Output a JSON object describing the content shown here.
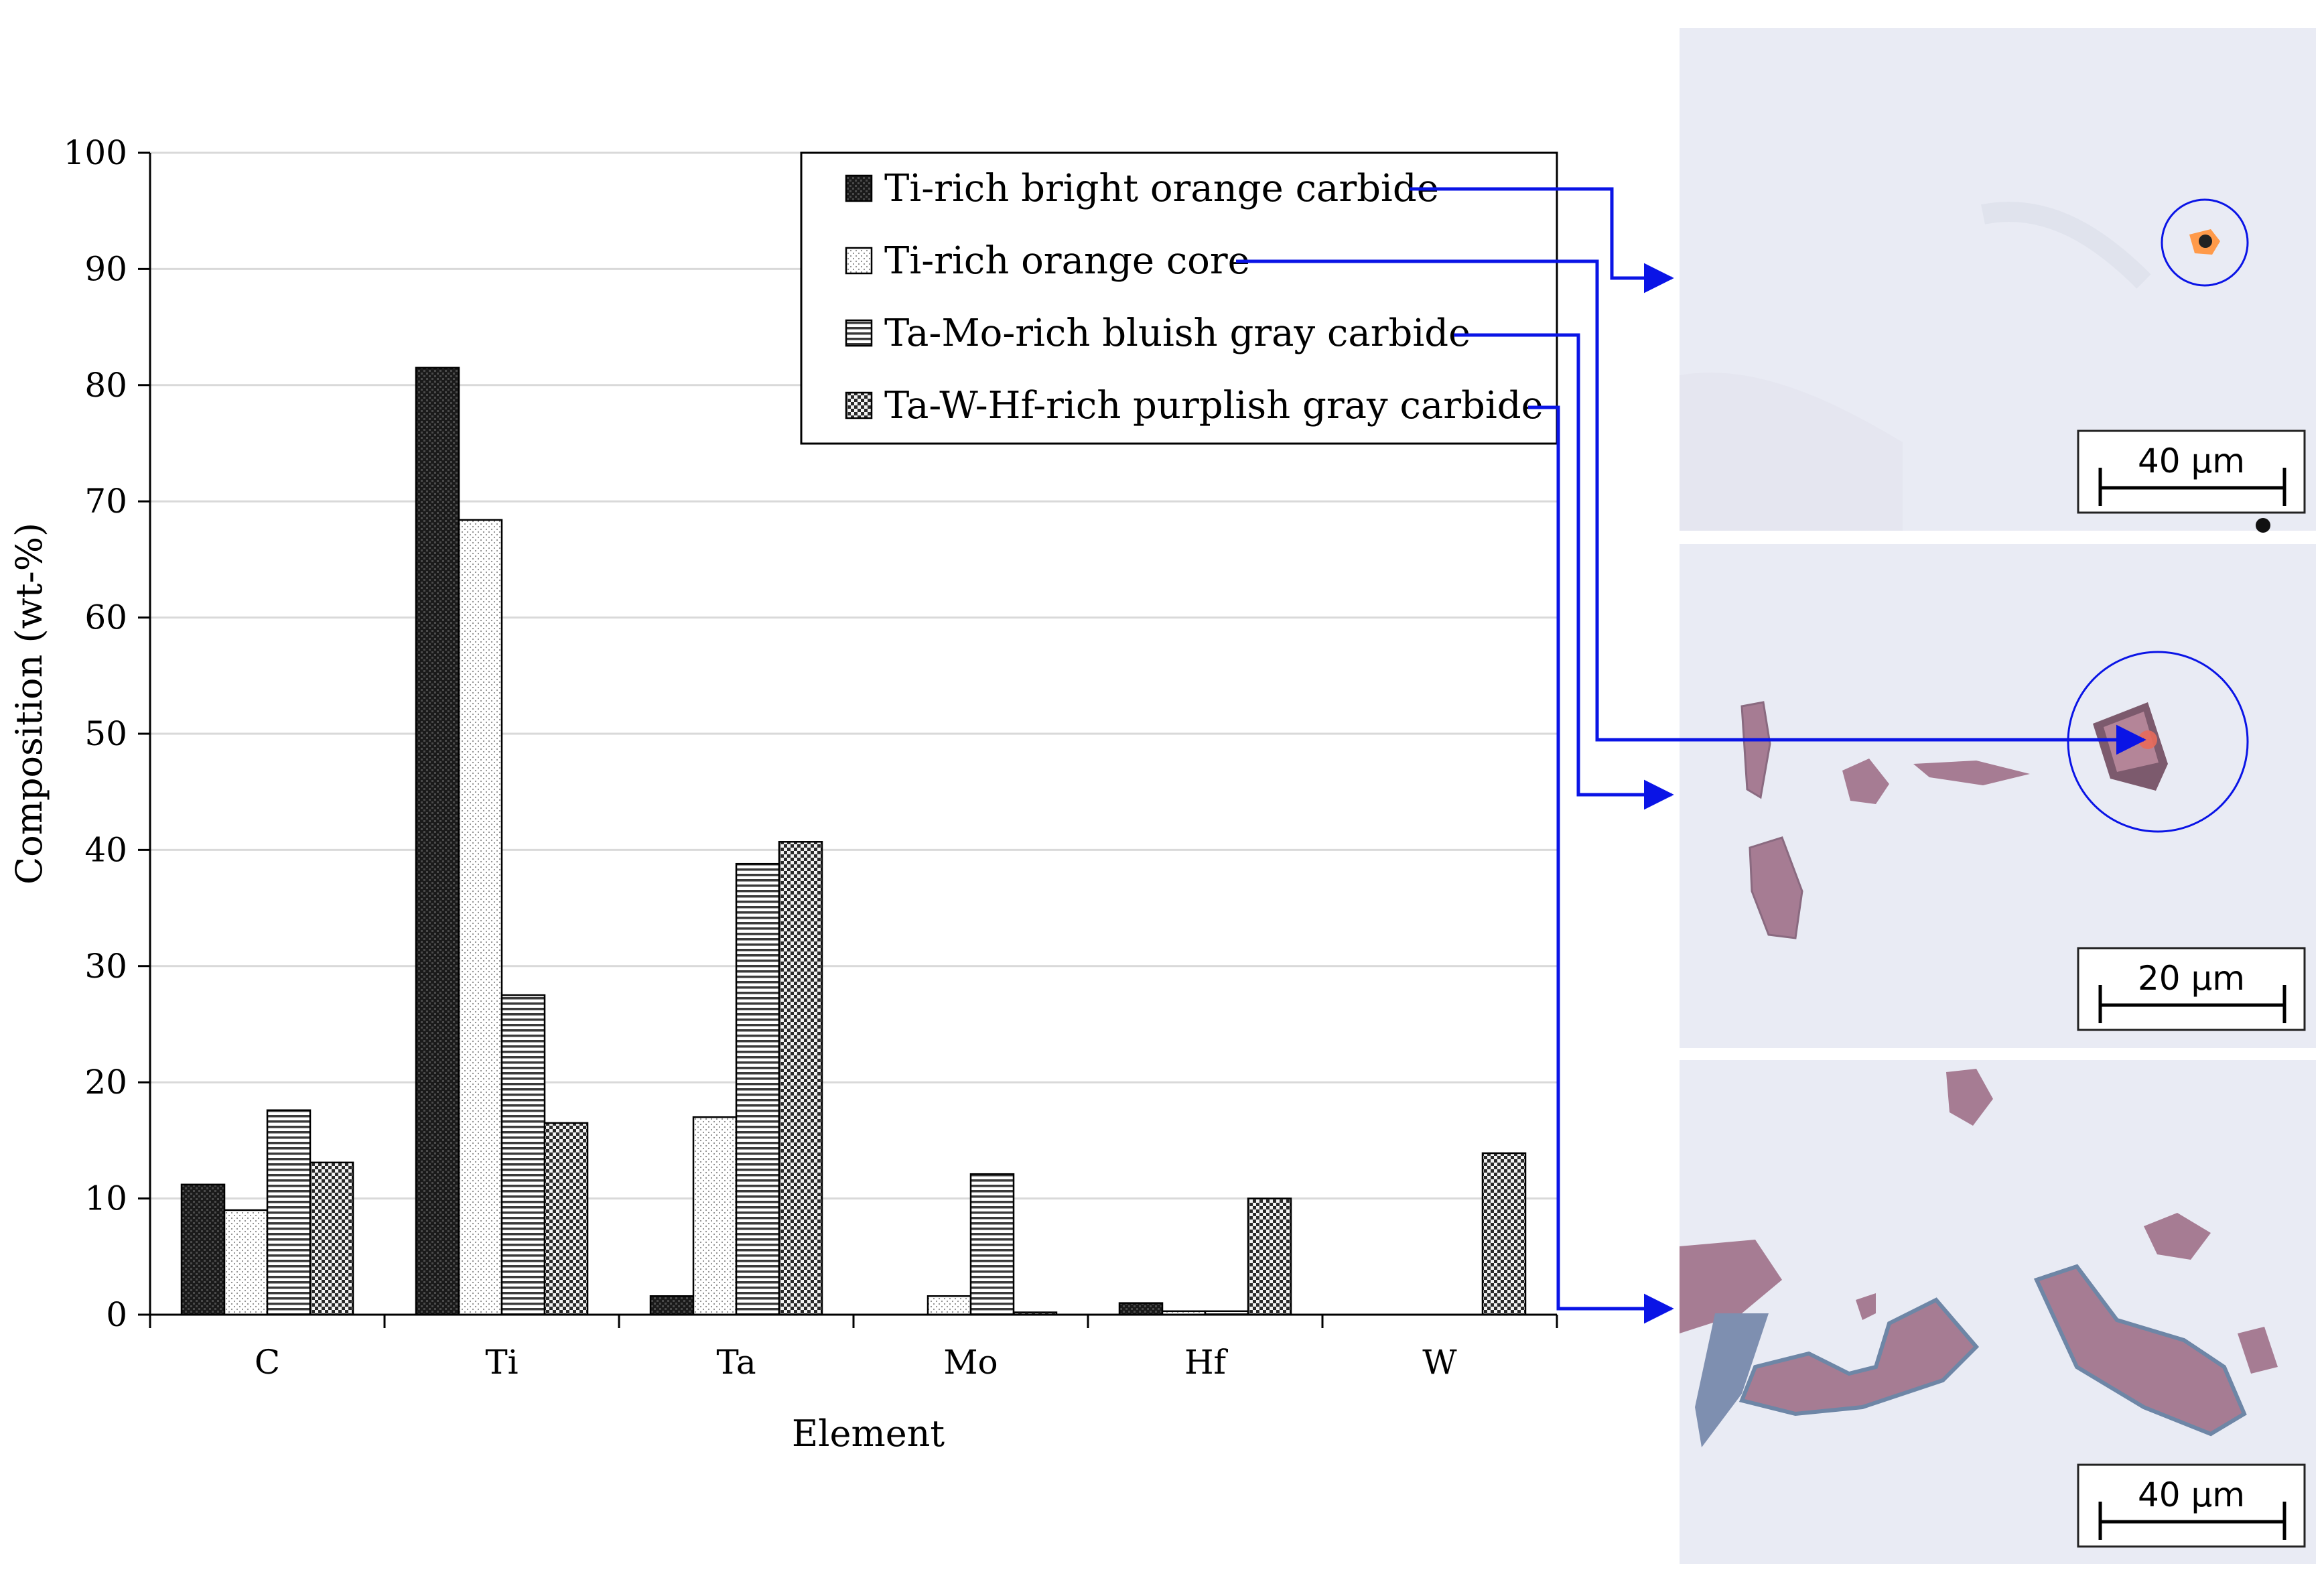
{
  "chart_data": {
    "type": "bar",
    "xlabel": "Element",
    "ylabel": "Composition (wt-%)",
    "ylim": [
      0,
      100
    ],
    "yticks": [
      0,
      10,
      20,
      30,
      40,
      50,
      60,
      70,
      80,
      90,
      100
    ],
    "grid": "horizontal",
    "legend_position": "top-right",
    "categories": [
      "C",
      "Ti",
      "Ta",
      "Mo",
      "Hf",
      "W"
    ],
    "series": [
      {
        "name": "Ti-rich bright orange carbide",
        "pattern": "solid-dark",
        "values": [
          11.2,
          81.5,
          1.6,
          0,
          1.0,
          0
        ]
      },
      {
        "name": "Ti-rich orange core",
        "pattern": "light-dots",
        "values": [
          9.0,
          68.4,
          17.0,
          1.6,
          0.3,
          0
        ]
      },
      {
        "name": "Ta-Mo-rich bluish gray carbide",
        "pattern": "horizontal-lines",
        "values": [
          17.6,
          27.5,
          38.8,
          12.1,
          0.3,
          0
        ]
      },
      {
        "name": "Ta-W-Hf-rich purplish gray carbide",
        "pattern": "checker",
        "values": [
          13.1,
          16.5,
          40.7,
          0.2,
          10.0,
          13.9
        ]
      }
    ]
  },
  "micrographs": [
    {
      "scale_label": "40 µm",
      "series_index": 0
    },
    {
      "scale_label": "20 µm",
      "series_index": 1
    },
    {
      "scale_label": "40 µm",
      "series_index": 3
    }
  ],
  "colors": {
    "connector": "#0a14e6",
    "gridline": "#d9d9d9",
    "micrograph_background": "#e8eaf3",
    "carbide_purple": "#a67c93",
    "carbide_blue": "#6e86a6",
    "carbide_orange": "#ff9a4a"
  }
}
